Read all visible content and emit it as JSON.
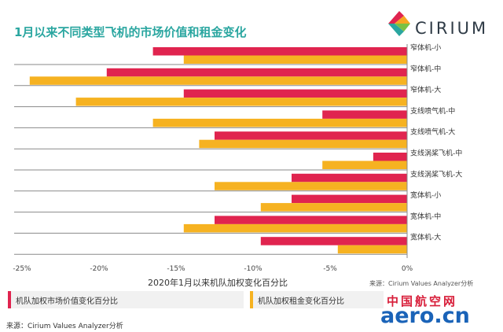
{
  "title": "1月以来不同类型飞机的市场价值和租金变化",
  "logo": {
    "text": "CIRIUM",
    "colors": [
      "#e0244f",
      "#f5a623",
      "#2aa6a0",
      "#7ac143"
    ]
  },
  "source_note_chart": "来源：Cirium Values Analyzer分析",
  "source_note_bottom": "来源：Cirium Values Analyzer分析",
  "watermark": {
    "cn": "中国航空网",
    "en": "aero.cn"
  },
  "chart_data": {
    "type": "bar",
    "orientation": "horizontal",
    "xlabel": "2020年1月以来机队加权变化百分比",
    "xlim": [
      -25,
      0
    ],
    "xticks": [
      -25,
      -20,
      -15,
      -10,
      -5,
      0
    ],
    "xtick_labels": [
      "-25%",
      "-20%",
      "-15%",
      "-10%",
      "-5%",
      "0%"
    ],
    "categories": [
      "窄体机-小",
      "窄体机-中",
      "窄体机-大",
      "支线喷气机-中",
      "支线喷气机-大",
      "支线涡桨飞机-中",
      "支线涡桨飞机-大",
      "宽体机-小",
      "宽体机-中",
      "宽体机-大"
    ],
    "series": [
      {
        "name": "机队加权市场价值变化百分比",
        "color": "#e0244f",
        "values": [
          -16.5,
          -19.5,
          -14.5,
          -5.5,
          -12.5,
          -2.2,
          -7.5,
          -7.5,
          -12.5,
          -9.5
        ]
      },
      {
        "name": "机队加权租金变化百分比",
        "color": "#f6b221",
        "values": [
          -14.5,
          -24.5,
          -21.5,
          -16.5,
          -13.5,
          -5.5,
          -12.5,
          -9.5,
          -14.5,
          -4.5
        ]
      }
    ],
    "grid": false,
    "legend_position": "bottom"
  }
}
